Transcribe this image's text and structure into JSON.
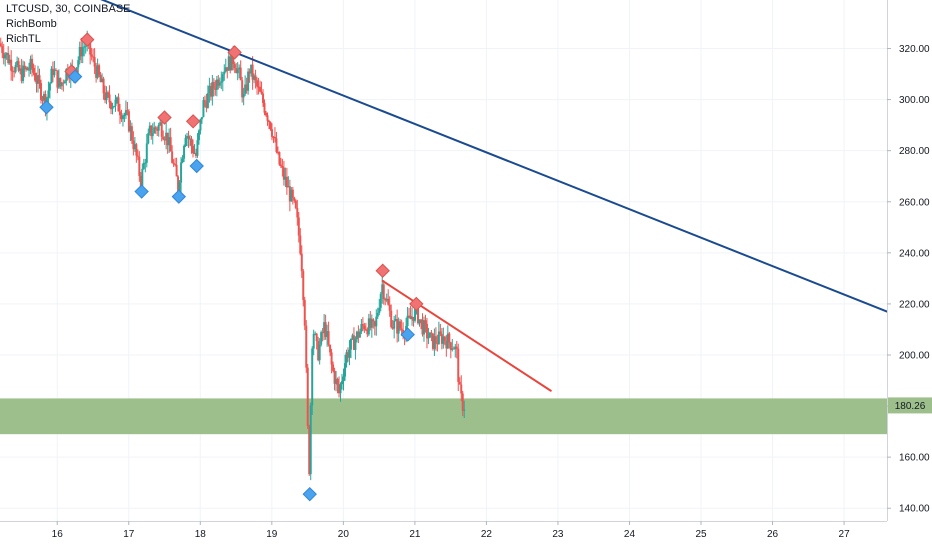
{
  "chart_data": {
    "type": "candlestick",
    "symbol_title": "LTCUSD, 30, COINBASE",
    "indicators": [
      "RichBomb",
      "RichTL"
    ],
    "x_axis": {
      "tick_labels": [
        "16",
        "17",
        "18",
        "19",
        "20",
        "21",
        "22",
        "23",
        "24",
        "25",
        "26",
        "27"
      ],
      "range_days": [
        15.2,
        27.6
      ]
    },
    "y_axis": {
      "tick_labels": [
        "140.00",
        "160.00",
        "180.00",
        "200.00",
        "220.00",
        "240.00",
        "260.00",
        "280.00",
        "300.00",
        "320.00"
      ],
      "ylim": [
        135,
        339
      ],
      "position": "right"
    },
    "last_price": {
      "value": 180.26,
      "label": "180.26"
    },
    "colors": {
      "up": "#26a69a",
      "down": "#ef5350",
      "support_zone": "#9dbf8b",
      "major_trendline": "#1a4a8f",
      "minor_trendline": "#e8453c",
      "top_marker": "#f07272",
      "bottom_marker": "#4aa3ef",
      "grid": "#f0f3fa"
    },
    "support_zone": {
      "low": 169,
      "high": 183
    },
    "trendlines": [
      {
        "name": "major",
        "from": {
          "day": 16.1,
          "price": 345
        },
        "to": {
          "day": 27.6,
          "price": 217
        }
      },
      {
        "name": "minor",
        "from": {
          "day": 20.55,
          "price": 229
        },
        "to": {
          "day": 22.9,
          "price": 186
        }
      }
    ],
    "top_markers": [
      {
        "day": 16.42,
        "price": 323.5
      },
      {
        "day": 16.2,
        "price": 311
      },
      {
        "day": 17.5,
        "price": 293
      },
      {
        "day": 17.9,
        "price": 291.5
      },
      {
        "day": 18.48,
        "price": 318.5
      },
      {
        "day": 20.55,
        "price": 233
      },
      {
        "day": 21.02,
        "price": 220
      }
    ],
    "bottom_markers": [
      {
        "day": 15.85,
        "price": 297
      },
      {
        "day": 16.25,
        "price": 309
      },
      {
        "day": 17.18,
        "price": 264
      },
      {
        "day": 17.7,
        "price": 262
      },
      {
        "day": 17.95,
        "price": 274
      },
      {
        "day": 19.53,
        "price": 145.5
      },
      {
        "day": 20.9,
        "price": 208
      }
    ],
    "price_path": [
      [
        15.2,
        322
      ],
      [
        15.35,
        315
      ],
      [
        15.5,
        310
      ],
      [
        15.65,
        313
      ],
      [
        15.8,
        302
      ],
      [
        15.85,
        299
      ],
      [
        15.95,
        312
      ],
      [
        16.05,
        305
      ],
      [
        16.15,
        312
      ],
      [
        16.25,
        311
      ],
      [
        16.35,
        320
      ],
      [
        16.42,
        322
      ],
      [
        16.55,
        312
      ],
      [
        16.7,
        300
      ],
      [
        16.85,
        298
      ],
      [
        17.0,
        292
      ],
      [
        17.1,
        280
      ],
      [
        17.18,
        268
      ],
      [
        17.3,
        287
      ],
      [
        17.45,
        290
      ],
      [
        17.55,
        285
      ],
      [
        17.7,
        266
      ],
      [
        17.8,
        288
      ],
      [
        17.95,
        278
      ],
      [
        18.05,
        298
      ],
      [
        18.2,
        305
      ],
      [
        18.35,
        313
      ],
      [
        18.48,
        316
      ],
      [
        18.55,
        310
      ],
      [
        18.62,
        300
      ],
      [
        18.7,
        312
      ],
      [
        18.8,
        305
      ],
      [
        18.9,
        298
      ],
      [
        19.0,
        290
      ],
      [
        19.1,
        276
      ],
      [
        19.2,
        268
      ],
      [
        19.3,
        260
      ],
      [
        19.35,
        255
      ],
      [
        19.42,
        240
      ],
      [
        19.47,
        215
      ],
      [
        19.53,
        152
      ],
      [
        19.58,
        212
      ],
      [
        19.65,
        200
      ],
      [
        19.75,
        212
      ],
      [
        19.85,
        195
      ],
      [
        19.95,
        185
      ],
      [
        20.05,
        200
      ],
      [
        20.15,
        205
      ],
      [
        20.3,
        212
      ],
      [
        20.45,
        210
      ],
      [
        20.55,
        228
      ],
      [
        20.7,
        212
      ],
      [
        20.85,
        210
      ],
      [
        20.95,
        214
      ],
      [
        21.02,
        218
      ],
      [
        21.1,
        212
      ],
      [
        21.25,
        205
      ],
      [
        21.4,
        207
      ],
      [
        21.55,
        204
      ],
      [
        21.6,
        200
      ],
      [
        21.63,
        186
      ],
      [
        21.67,
        181
      ],
      [
        21.69,
        180.26
      ]
    ]
  }
}
